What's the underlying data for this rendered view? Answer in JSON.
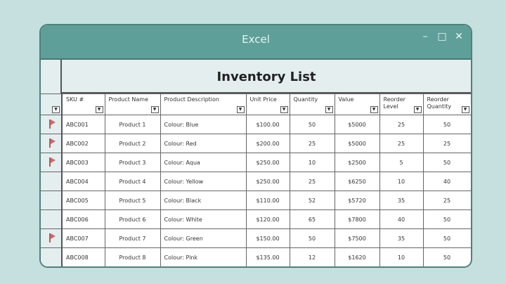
{
  "window": {
    "title": "Excel",
    "controls": [
      "minimize",
      "maximize",
      "close"
    ]
  },
  "sheet": {
    "title": "Inventory List",
    "columns": [
      "SKU #",
      "Product Name",
      "Product Description",
      "Unit Price",
      "Quantity",
      "Value",
      "Reorder Level",
      "Reorder Quantity"
    ],
    "rows": [
      {
        "flag": true,
        "cells": [
          "ABC001",
          "Product 1",
          "Colour: Blue",
          "$100.00",
          "50",
          "$5000",
          "25",
          "50"
        ]
      },
      {
        "flag": true,
        "cells": [
          "ABC002",
          "Product 2",
          "Colour: Red",
          "$200.00",
          "25",
          "$5000",
          "25",
          "25"
        ]
      },
      {
        "flag": true,
        "cells": [
          "ABC003",
          "Product 3",
          "Colour: Aqua",
          "$250.00",
          "10",
          "$2500",
          "5",
          "50"
        ]
      },
      {
        "flag": false,
        "cells": [
          "ABC004",
          "Product 4",
          "Colour: Yellow",
          "$250.00",
          "25",
          "$6250",
          "10",
          "40"
        ]
      },
      {
        "flag": false,
        "cells": [
          "ABC005",
          "Product 5",
          "Colour: Black",
          "$110.00",
          "52",
          "$5720",
          "35",
          "25"
        ]
      },
      {
        "flag": false,
        "cells": [
          "ABC006",
          "Product 6",
          "Colour: White",
          "$120.00",
          "65",
          "$7800",
          "40",
          "50"
        ]
      },
      {
        "flag": true,
        "cells": [
          "ABC007",
          "Product 7",
          "Colour: Green",
          "$150.00",
          "50",
          "$7500",
          "35",
          "50"
        ]
      },
      {
        "flag": false,
        "cells": [
          "ABC008",
          "Product 8",
          "Colour: Pink",
          "$135.00",
          "12",
          "$1620",
          "10",
          "50"
        ]
      }
    ]
  },
  "colors": {
    "titlebar": "#5f9f99",
    "background": "#c6dfdf",
    "flag": "#c96b6b"
  }
}
